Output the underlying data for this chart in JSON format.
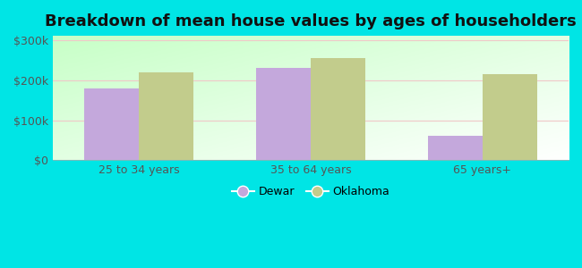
{
  "title": "Breakdown of mean house values by ages of householders",
  "categories": [
    "25 to 34 years",
    "35 to 64 years",
    "65 years+"
  ],
  "dewar_values": [
    180000,
    230000,
    60000
  ],
  "oklahoma_values": [
    220000,
    255000,
    215000
  ],
  "dewar_color": "#c4a8dc",
  "oklahoma_color": "#c2cc8c",
  "yticks": [
    0,
    100000,
    200000,
    300000
  ],
  "ytick_labels": [
    "$0",
    "$100k",
    "$200k",
    "$300k"
  ],
  "ylim": [
    0,
    310000
  ],
  "bar_width": 0.32,
  "background_color": "#00e5e5",
  "legend_labels": [
    "Dewar",
    "Oklahoma"
  ],
  "title_fontsize": 13,
  "tick_fontsize": 9,
  "legend_fontsize": 9,
  "figure_size": [
    6.5,
    3.0
  ],
  "dpi": 100
}
